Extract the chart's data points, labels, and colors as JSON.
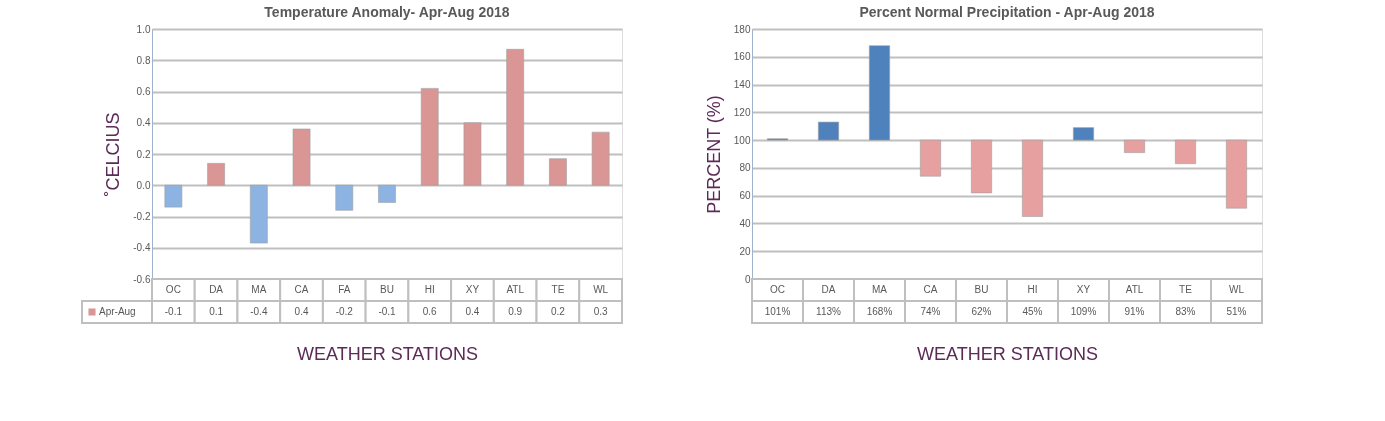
{
  "chart_data": [
    {
      "type": "bar",
      "title": "Temperature Anomaly- Apr-Aug 2018",
      "xlabel": "WEATHER STATIONS",
      "ylabel": "˚CELCIUS",
      "categories": [
        "OC",
        "DA",
        "MA",
        "CA",
        "FA",
        "BU",
        "HI",
        "XY",
        "ATL",
        "TE",
        "WL"
      ],
      "series": [
        {
          "name": "Apr-Aug",
          "color": "#d99694",
          "values": [
            -0.14,
            0.14,
            -0.37,
            0.36,
            -0.16,
            -0.11,
            0.62,
            0.4,
            0.87,
            0.17,
            0.34
          ],
          "colors": [
            "#8db3e2",
            "#d99694",
            "#8db3e2",
            "#d99694",
            "#8db3e2",
            "#8db3e2",
            "#d99694",
            "#d99694",
            "#d99694",
            "#d99694",
            "#d99694"
          ],
          "value_labels": [
            "-0.1",
            "0.1",
            "-0.4",
            "0.4",
            "-0.2",
            "-0.1",
            "0.6",
            "0.4",
            "0.9",
            "0.2",
            "0.3"
          ]
        }
      ],
      "ylim": [
        -0.6,
        1.0
      ],
      "yticks": [
        {
          "value": -0.6,
          "label": "-0.6"
        },
        {
          "value": -0.4,
          "label": "-0.4"
        },
        {
          "value": -0.2,
          "label": "-0.2"
        },
        {
          "value": 0,
          "label": "0.0"
        },
        {
          "value": 0.2,
          "label": "0.2"
        },
        {
          "value": 0.4,
          "label": "0.4"
        },
        {
          "value": 0.6,
          "label": "0.6"
        },
        {
          "value": 0.8,
          "label": "0.8"
        },
        {
          "value": 1,
          "label": "1.0"
        }
      ],
      "grid": "y",
      "legend": "bottom left"
    },
    {
      "type": "bar",
      "title": "Percent Normal Precipitation - Apr-Aug 2018",
      "xlabel": "WEATHER STATIONS",
      "ylabel": "PERCENT (%)",
      "categories": [
        "OC",
        "DA",
        "MA",
        "CA",
        "BU",
        "HI",
        "XY",
        "ATL",
        "TE",
        "WL"
      ],
      "series": [
        {
          "values": [
            1,
            13,
            68,
            -26,
            -38,
            -55,
            9,
            -9,
            -17,
            -49
          ],
          "base": [
            100,
            100,
            100,
            100,
            100,
            100,
            100,
            100,
            100,
            100
          ],
          "colors": [
            "#4f81bd",
            "#4f81bd",
            "#4f81bd",
            "#e6a0a0",
            "#e6a0a0",
            "#e6a0a0",
            "#4f81bd",
            "#e6a0a0",
            "#e6a0a0",
            "#e6a0a0"
          ],
          "value_labels": [
            "101%",
            "113%",
            "168%",
            "74%",
            "62%",
            "45%",
            "109%",
            "91%",
            "83%",
            "51%"
          ]
        }
      ],
      "ylim": [
        0,
        180
      ],
      "yticks": [
        0,
        20,
        40,
        60,
        80,
        100,
        120,
        140,
        160,
        180
      ],
      "grid": "y"
    }
  ]
}
